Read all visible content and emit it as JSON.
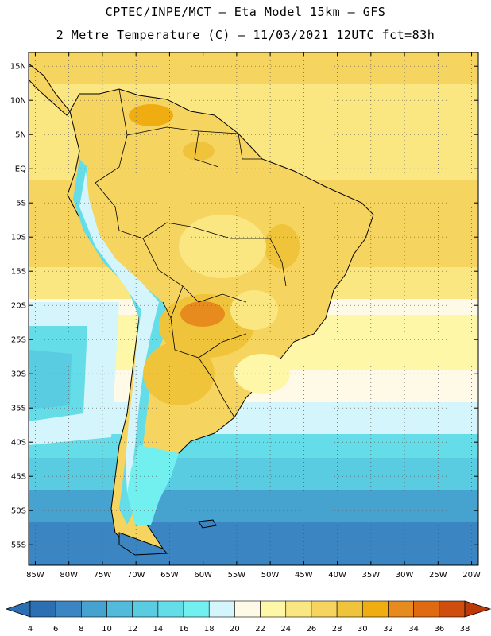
{
  "header": {
    "line1": "CPTEC/INPE/MCT –  Eta Model 15km – GFS",
    "line2": "2 Metre Temperature (C) – 11/03/2021 12UTC fct=83h"
  },
  "map": {
    "lat_labels": [
      "15N",
      "10N",
      "5N",
      "EQ",
      "5S",
      "10S",
      "15S",
      "20S",
      "25S",
      "30S",
      "35S",
      "40S",
      "45S",
      "50S",
      "55S"
    ],
    "lon_labels": [
      "85W",
      "80W",
      "75W",
      "70W",
      "65W",
      "60W",
      "55W",
      "50W",
      "45W",
      "40W",
      "35W",
      "30W",
      "25W",
      "20W"
    ],
    "lat_values": [
      15,
      10,
      5,
      0,
      -5,
      -10,
      -15,
      -20,
      -25,
      -30,
      -35,
      -40,
      -45,
      -50,
      -55
    ],
    "lon_values": [
      -85,
      -80,
      -75,
      -70,
      -65,
      -60,
      -55,
      -50,
      -45,
      -40,
      -35,
      -30,
      -25,
      -20
    ],
    "extent": {
      "lon_min": -86,
      "lon max": -19,
      "lat_min": -58,
      "lat_max": 17
    }
  },
  "colorbar": {
    "labels": [
      "4",
      "6",
      "8",
      "10",
      "12",
      "14",
      "16",
      "18",
      "20",
      "22",
      "24",
      "26",
      "28",
      "30",
      "32",
      "34",
      "36",
      "38"
    ],
    "colors": [
      "#2c6fb2",
      "#3b86c2",
      "#46a3cf",
      "#52bbdc",
      "#59cce2",
      "#65dde8",
      "#72f0f0",
      "#d4f5fb",
      "#fffae8",
      "#fef7a8",
      "#fbe782",
      "#f6d460",
      "#efc43a",
      "#f0ad12",
      "#e88b1e",
      "#e06a12",
      "#cf4e0e",
      "#bb3a08"
    ],
    "under_color": "#2c6fb2",
    "over_color": "#bb3a08"
  }
}
